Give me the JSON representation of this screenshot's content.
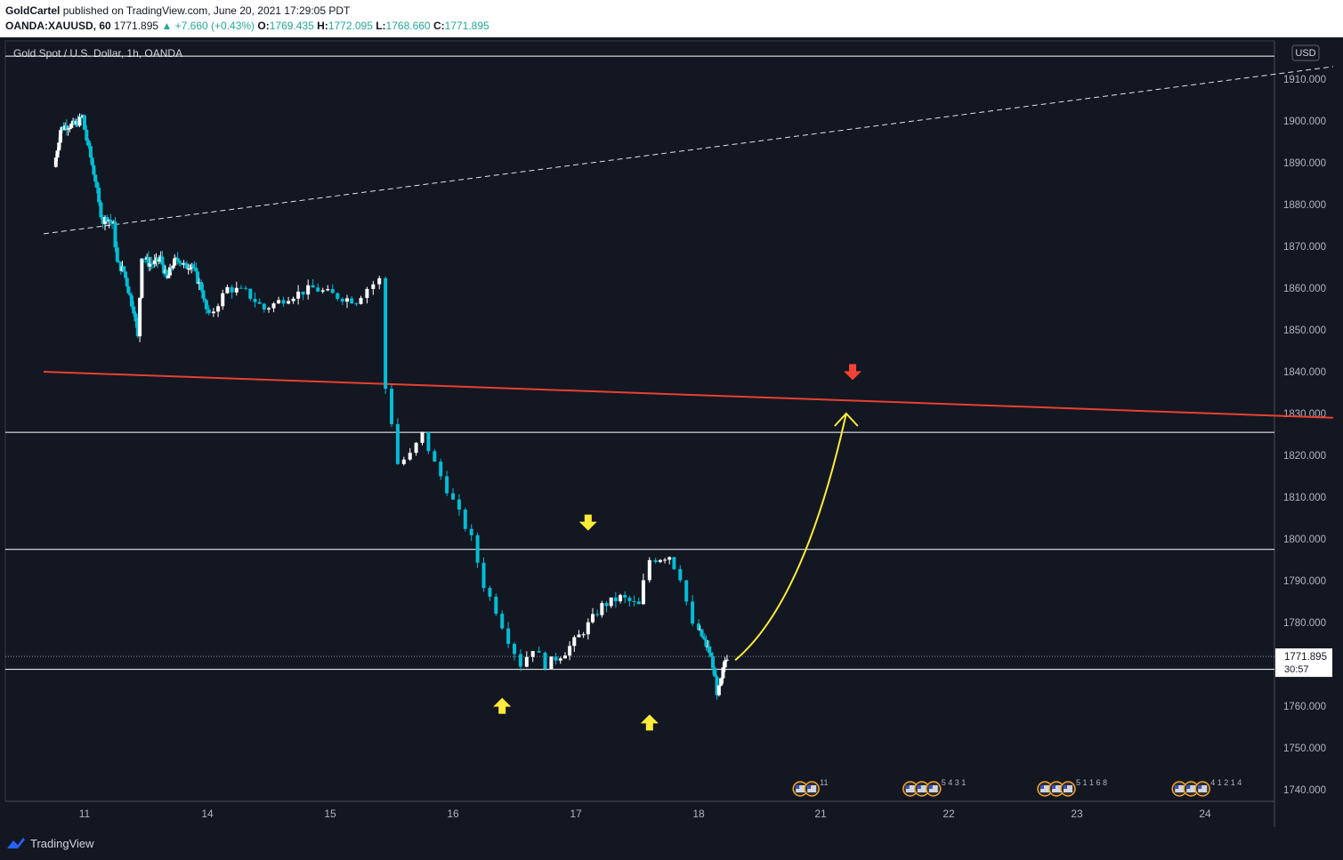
{
  "header": {
    "author": "GoldCartel",
    "published_text": "published on TradingView.com, June 20, 2021 17:29:05 PDT",
    "symbol": "OANDA:XAUUSD, 60",
    "last": "1771.895",
    "change": "▲ +7.660 (+0.43%)",
    "open_label": "O:",
    "open": "1769.435",
    "high_label": "H:",
    "high": "1772.095",
    "low_label": "L:",
    "low": "1768.660",
    "close_label": "C:",
    "close": "1771.895"
  },
  "footer": {
    "brand": "TradingView",
    "logo_icon": "tradingview-logo-icon"
  },
  "chart_data": {
    "type": "candlestick",
    "title": "Gold Spot / U.S. Dollar, 1h, OANDA",
    "currency": "USD",
    "ylim": [
      1733,
      1918
    ],
    "y_ticks": [
      "1910.000",
      "1900.000",
      "1890.000",
      "1880.000",
      "1870.000",
      "1860.000",
      "1850.000",
      "1840.000",
      "1830.000",
      "1820.000",
      "1810.000",
      "1800.000",
      "1790.000",
      "1780.000",
      "1770.000",
      "1760.000",
      "1750.000",
      "1740.000"
    ],
    "x_ticks": [
      "11",
      "14",
      "15",
      "16",
      "17",
      "18",
      "21",
      "22",
      "23",
      "24"
    ],
    "x_axis_note": "days of June 2021; x positions of candles given in day units (11.0 = start of June 11)",
    "last_price": "1771.895",
    "countdown": "30:57",
    "colors": {
      "up": "#ffffff",
      "down": "#00bcd4",
      "red_line": "#e8412f",
      "arrow_yellow": "#ffeb3b",
      "arrow_red": "#f44336",
      "label_bg": "#ffffff"
    },
    "candle_path": [
      [
        10.3,
        1889
      ],
      [
        10.45,
        1898
      ],
      [
        10.6,
        1899
      ],
      [
        10.8,
        1899
      ],
      [
        11.0,
        1901
      ],
      [
        11.05,
        1898
      ],
      [
        11.15,
        1893
      ],
      [
        11.3,
        1886
      ],
      [
        11.4,
        1880
      ],
      [
        11.5,
        1876
      ],
      [
        11.6,
        1877
      ],
      [
        11.75,
        1875
      ],
      [
        11.85,
        1866
      ],
      [
        12.0,
        1864
      ],
      [
        12.15,
        1858
      ],
      [
        12.25,
        1855
      ],
      [
        12.35,
        1848
      ],
      [
        12.45,
        1868
      ],
      [
        12.6,
        1866
      ],
      [
        12.75,
        1866
      ],
      [
        12.9,
        1867
      ],
      [
        13.05,
        1862
      ],
      [
        13.2,
        1866
      ],
      [
        13.35,
        1867
      ],
      [
        13.5,
        1865
      ],
      [
        13.65,
        1866
      ],
      [
        13.8,
        1862
      ],
      [
        13.9,
        1860
      ],
      [
        14.05,
        1853
      ],
      [
        14.2,
        1860
      ],
      [
        14.35,
        1859
      ],
      [
        14.5,
        1855
      ],
      [
        14.7,
        1858
      ],
      [
        14.9,
        1860
      ],
      [
        15.1,
        1858
      ],
      [
        15.25,
        1857
      ],
      [
        15.35,
        1860
      ],
      [
        15.45,
        1862
      ],
      [
        15.5,
        1836
      ],
      [
        15.55,
        1828
      ],
      [
        15.6,
        1818
      ],
      [
        15.7,
        1820
      ],
      [
        15.8,
        1825
      ],
      [
        15.9,
        1818
      ],
      [
        16.0,
        1812
      ],
      [
        16.1,
        1806
      ],
      [
        16.2,
        1800
      ],
      [
        16.3,
        1789
      ],
      [
        16.4,
        1783
      ],
      [
        16.5,
        1776
      ],
      [
        16.6,
        1770
      ],
      [
        16.7,
        1774
      ],
      [
        16.8,
        1770
      ],
      [
        16.95,
        1773
      ],
      [
        17.1,
        1778
      ],
      [
        17.25,
        1784
      ],
      [
        17.4,
        1786
      ],
      [
        17.55,
        1784
      ],
      [
        17.65,
        1795
      ],
      [
        17.8,
        1796
      ],
      [
        17.9,
        1791
      ],
      [
        18.0,
        1779
      ],
      [
        18.15,
        1776
      ],
      [
        18.3,
        1773
      ],
      [
        18.4,
        1770
      ],
      [
        18.5,
        1762
      ],
      [
        18.6,
        1766
      ],
      [
        18.7,
        1771
      ],
      [
        18.75,
        1772
      ]
    ],
    "horizontal_levels": [
      1915.5,
      1825.5,
      1797.5,
      1768.8
    ],
    "last_price_value": 1771.895,
    "support_line": {
      "from": [
        10.0,
        1840
      ],
      "to": [
        25.0,
        1829
      ]
    },
    "dashed_trendline": {
      "from": [
        10.0,
        1873
      ],
      "to": [
        25.0,
        1913
      ]
    },
    "projection_curve": {
      "from": [
        18.9,
        1771
      ],
      "ctrl": [
        20.6,
        1785
      ],
      "to": [
        21.2,
        1830
      ]
    },
    "up_arrows_yellow": [
      [
        16.4,
        1762
      ],
      [
        17.6,
        1758
      ]
    ],
    "down_arrow_yellow": [
      17.1,
      1802
    ],
    "down_arrow_red": [
      21.25,
      1838
    ],
    "event_marker_groups": [
      {
        "x": 20.5,
        "count": 2,
        "label": "11"
      },
      {
        "x": 21.7,
        "count": 3,
        "label": "5  4  3 1"
      },
      {
        "x": 22.75,
        "count": 3,
        "label": "5 1 1 6   8"
      },
      {
        "x": 23.8,
        "count": 3,
        "label": "4 1 2  1   4"
      }
    ]
  }
}
